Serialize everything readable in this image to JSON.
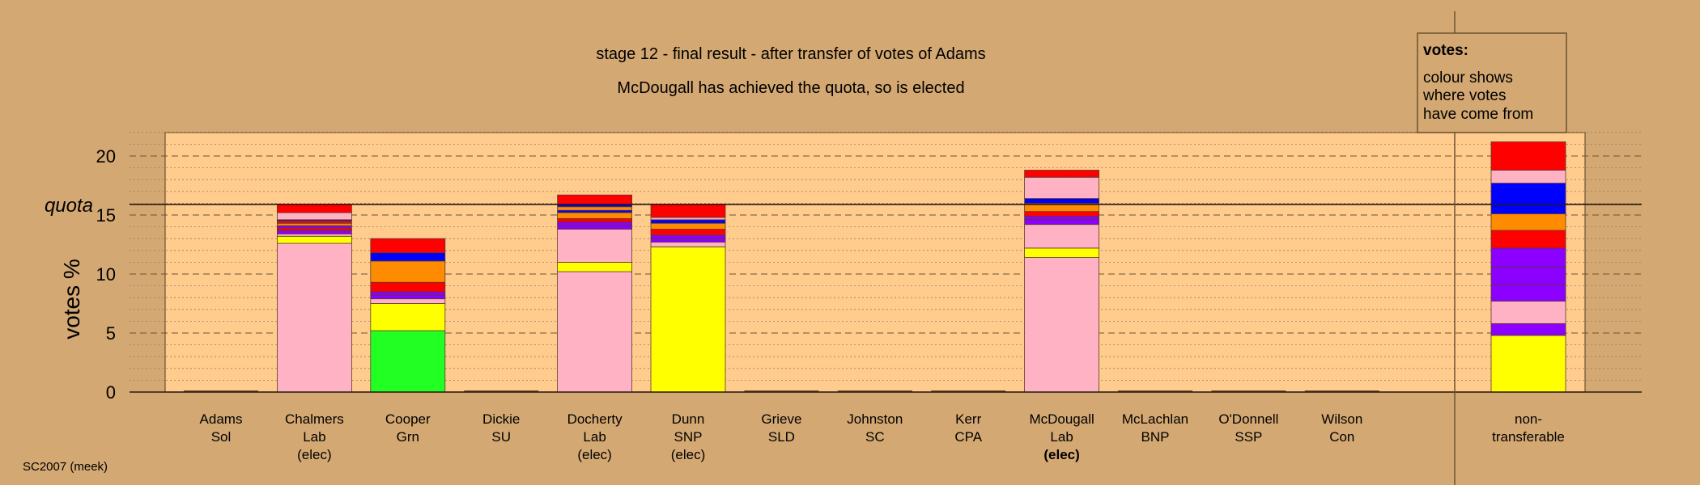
{
  "chart_data": {
    "type": "bar",
    "title": "stage 12 - final result - after transfer of votes of Adams",
    "subtitle": "McDougall has achieved the quota, so is elected",
    "ylabel": "votes %",
    "quota_label": "quota",
    "quota": 15.9,
    "ylim": [
      0,
      22
    ],
    "yticks": [
      0,
      5,
      10,
      15,
      20
    ],
    "grid": true,
    "footer": "SC2007 (meek)",
    "legend": {
      "title": "votes:",
      "lines": [
        "colour shows",
        "where votes",
        "have come from"
      ],
      "position": "top-right"
    },
    "colors": {
      "background": "#d4a872",
      "plot_area": "#ffcc8e",
      "Lab": "#ffb2c3",
      "SNP": "#ffff00",
      "Grn": "#22ff22",
      "LibDem": "#ff8c00",
      "Con": "#0000ff",
      "SSP": "#ff0000",
      "Other": "#8b00ff"
    },
    "candidates": [
      {
        "name": "Adams",
        "party": "Sol",
        "status": "",
        "segments": []
      },
      {
        "name": "Chalmers",
        "party": "Lab",
        "status": "(elec)",
        "status_bold": false,
        "segments": [
          {
            "value": 12.6,
            "color": "#ffb2c3"
          },
          {
            "value": 0.6,
            "color": "#ffff00"
          },
          {
            "value": 0.2,
            "color": "#ffb2c3"
          },
          {
            "value": 0.3,
            "color": "#8b00ff"
          },
          {
            "value": 0.2,
            "color": "#ff0000"
          },
          {
            "value": 0.2,
            "color": "#8b00ff"
          },
          {
            "value": 0.2,
            "color": "#ff8c00"
          },
          {
            "value": 0.2,
            "color": "#ff0000"
          },
          {
            "value": 0.1,
            "color": "#0000ff"
          },
          {
            "value": 0.6,
            "color": "#ffb2c3"
          },
          {
            "value": 0.7,
            "color": "#ff0000"
          }
        ]
      },
      {
        "name": "Cooper",
        "party": "Grn",
        "status": "",
        "segments": [
          {
            "value": 5.2,
            "color": "#22ff22"
          },
          {
            "value": 2.3,
            "color": "#ffff00"
          },
          {
            "value": 0.4,
            "color": "#ffb2c3"
          },
          {
            "value": 0.3,
            "color": "#8b00ff"
          },
          {
            "value": 0.3,
            "color": "#8b00ff"
          },
          {
            "value": 0.8,
            "color": "#ff0000"
          },
          {
            "value": 1.8,
            "color": "#ff8c00"
          },
          {
            "value": 0.7,
            "color": "#0000ff"
          },
          {
            "value": 1.2,
            "color": "#ff0000"
          }
        ]
      },
      {
        "name": "Dickie",
        "party": "SU",
        "status": "",
        "segments": []
      },
      {
        "name": "Docherty",
        "party": "Lab",
        "status": "(elec)",
        "status_bold": false,
        "segments": [
          {
            "value": 10.2,
            "color": "#ffb2c3"
          },
          {
            "value": 0.8,
            "color": "#ffff00"
          },
          {
            "value": 2.8,
            "color": "#ffb2c3"
          },
          {
            "value": 0.3,
            "color": "#8b00ff"
          },
          {
            "value": 0.3,
            "color": "#8b00ff"
          },
          {
            "value": 0.3,
            "color": "#ff0000"
          },
          {
            "value": 0.5,
            "color": "#ff8c00"
          },
          {
            "value": 0.2,
            "color": "#0000ff"
          },
          {
            "value": 0.3,
            "color": "#ff8c00"
          },
          {
            "value": 0.2,
            "color": "#0000ff"
          },
          {
            "value": 0.8,
            "color": "#ff0000"
          }
        ]
      },
      {
        "name": "Dunn",
        "party": "SNP",
        "status": "(elec)",
        "status_bold": false,
        "segments": [
          {
            "value": 12.3,
            "color": "#ffff00"
          },
          {
            "value": 0.4,
            "color": "#ffb2c3"
          },
          {
            "value": 0.3,
            "color": "#8b00ff"
          },
          {
            "value": 0.3,
            "color": "#8b00ff"
          },
          {
            "value": 0.5,
            "color": "#ff0000"
          },
          {
            "value": 0.5,
            "color": "#ff8c00"
          },
          {
            "value": 0.3,
            "color": "#0000ff"
          },
          {
            "value": 0.2,
            "color": "#ffb2c3"
          },
          {
            "value": 1.1,
            "color": "#ff0000"
          }
        ]
      },
      {
        "name": "Grieve",
        "party": "SLD",
        "status": "",
        "segments": []
      },
      {
        "name": "Johnston",
        "party": "SC",
        "status": "",
        "segments": []
      },
      {
        "name": "Kerr",
        "party": "CPA",
        "status": "",
        "segments": []
      },
      {
        "name": "McDougall",
        "party": "Lab",
        "status": "(elec)",
        "status_bold": true,
        "segments": [
          {
            "value": 11.4,
            "color": "#ffb2c3"
          },
          {
            "value": 0.8,
            "color": "#ffff00"
          },
          {
            "value": 2.0,
            "color": "#ffb2c3"
          },
          {
            "value": 0.4,
            "color": "#8b00ff"
          },
          {
            "value": 0.3,
            "color": "#8b00ff"
          },
          {
            "value": 0.4,
            "color": "#ff0000"
          },
          {
            "value": 0.7,
            "color": "#ff8c00"
          },
          {
            "value": 0.4,
            "color": "#0000ff"
          },
          {
            "value": 1.8,
            "color": "#ffb2c3"
          },
          {
            "value": 0.6,
            "color": "#ff0000"
          }
        ]
      },
      {
        "name": "McLachlan",
        "party": "BNP",
        "status": "",
        "segments": []
      },
      {
        "name": "O'Donnell",
        "party": "SSP",
        "status": "",
        "segments": []
      },
      {
        "name": "Wilson",
        "party": "Con",
        "status": "",
        "segments": []
      }
    ],
    "nontransferable": {
      "label_line1": "non-",
      "label_line2": "transferable",
      "segments": [
        {
          "value": 4.8,
          "color": "#ffff00"
        },
        {
          "value": 1.0,
          "color": "#8b00ff"
        },
        {
          "value": 1.9,
          "color": "#ffb2c3"
        },
        {
          "value": 1.4,
          "color": "#8b00ff"
        },
        {
          "value": 1.5,
          "color": "#8b00ff"
        },
        {
          "value": 1.6,
          "color": "#8b00ff"
        },
        {
          "value": 1.5,
          "color": "#ff0000"
        },
        {
          "value": 1.4,
          "color": "#ff8c00"
        },
        {
          "value": 2.6,
          "color": "#0000ff"
        },
        {
          "value": 1.1,
          "color": "#ffb2c3"
        },
        {
          "value": 2.4,
          "color": "#ff0000"
        }
      ]
    }
  }
}
